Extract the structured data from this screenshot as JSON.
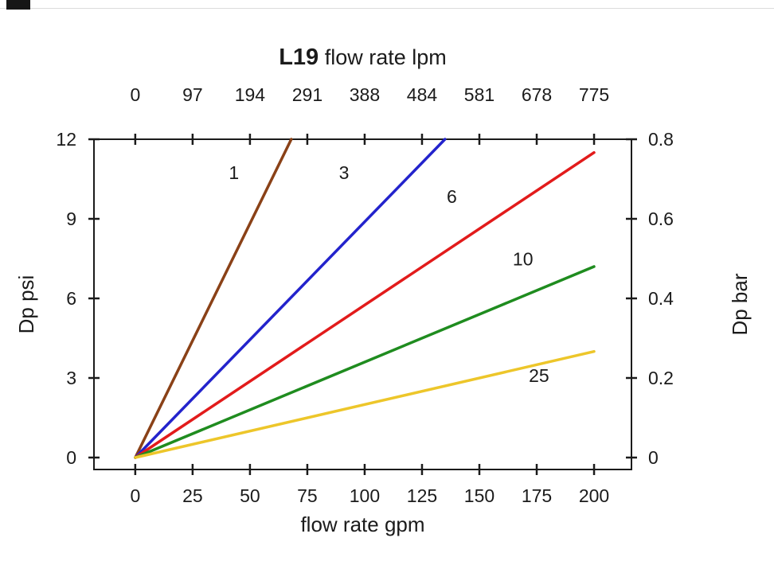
{
  "page": {
    "background": "#ffffff"
  },
  "chart_data": {
    "type": "line",
    "title": {
      "bold": "L19",
      "rest": " flow rate lpm"
    },
    "axes": {
      "x_bottom": {
        "label": "flow rate gpm",
        "ticks": [
          0,
          25,
          50,
          75,
          100,
          125,
          150,
          175,
          200
        ],
        "range": [
          -18,
          216.3
        ]
      },
      "x_top": {
        "label": "flow rate lpm",
        "ticks": [
          0,
          97,
          194,
          291,
          388,
          484,
          581,
          678,
          775
        ]
      },
      "y_left": {
        "label": "Dp psi",
        "ticks": [
          0,
          3,
          6,
          9,
          12
        ],
        "range": [
          -0.45,
          12
        ]
      },
      "y_right": {
        "label": "Dp bar",
        "ticks": [
          0,
          0.2,
          0.4,
          0.6,
          0.8
        ],
        "range": [
          -0.03,
          0.8
        ]
      }
    },
    "ink_color": "#1b1b1b",
    "series": [
      {
        "name": "1",
        "color": "#8a4117",
        "points": [
          [
            0,
            0
          ],
          [
            68,
            12
          ]
        ],
        "label_at": [
          43,
          10.5
        ]
      },
      {
        "name": "3",
        "color": "#2323cc",
        "points": [
          [
            0,
            0
          ],
          [
            135,
            12
          ]
        ],
        "label_at": [
          91,
          10.5
        ]
      },
      {
        "name": "6",
        "color": "#e21b1b",
        "points": [
          [
            0,
            0
          ],
          [
            200,
            11.5
          ]
        ],
        "label_at": [
          138,
          9.6
        ]
      },
      {
        "name": "10",
        "color": "#1f8c1f",
        "points": [
          [
            0,
            0
          ],
          [
            200,
            7.2
          ]
        ],
        "label_at": [
          169,
          7.25
        ]
      },
      {
        "name": "25",
        "color": "#edc62a",
        "points": [
          [
            0,
            0
          ],
          [
            200,
            4.0
          ]
        ],
        "label_at": [
          176,
          2.85
        ]
      }
    ]
  }
}
